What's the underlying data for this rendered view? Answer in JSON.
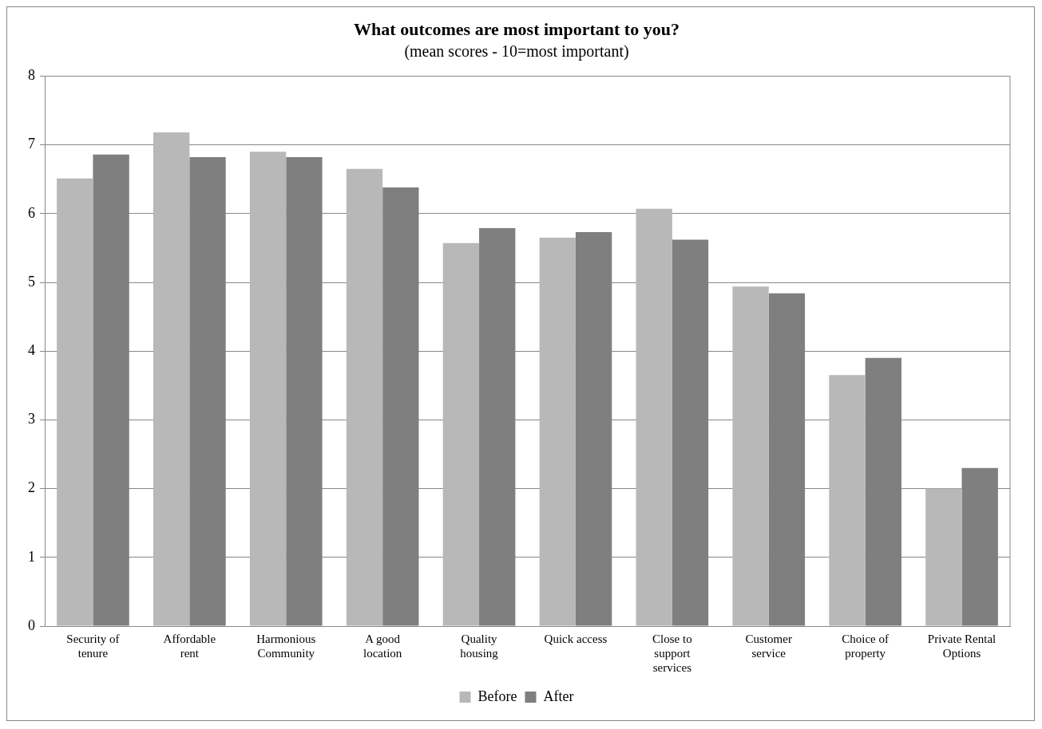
{
  "chart_data": {
    "type": "bar",
    "title": "What outcomes are most important to you?",
    "subtitle": "(mean scores - 10=most important)",
    "categories": [
      "Security of tenure",
      "Affordable rent",
      "Harmonious Community",
      "A good location",
      "Quality housing",
      "Quick access",
      "Close to support services",
      "Customer service",
      "Choice of property",
      "Private Rental Options"
    ],
    "series": [
      {
        "name": "Before",
        "color": "#b8b8b8",
        "values": [
          6.51,
          7.18,
          6.9,
          6.65,
          5.57,
          5.65,
          6.07,
          4.94,
          3.65,
          2.0
        ]
      },
      {
        "name": "After",
        "color": "#7f7f7f",
        "values": [
          6.86,
          6.82,
          6.82,
          6.38,
          5.79,
          5.73,
          5.62,
          4.84,
          3.9,
          2.3
        ]
      }
    ],
    "ylim": [
      0,
      8
    ],
    "yticks": [
      0,
      1,
      2,
      3,
      4,
      5,
      6,
      7,
      8
    ],
    "grid": "y",
    "legend": "bottom"
  }
}
